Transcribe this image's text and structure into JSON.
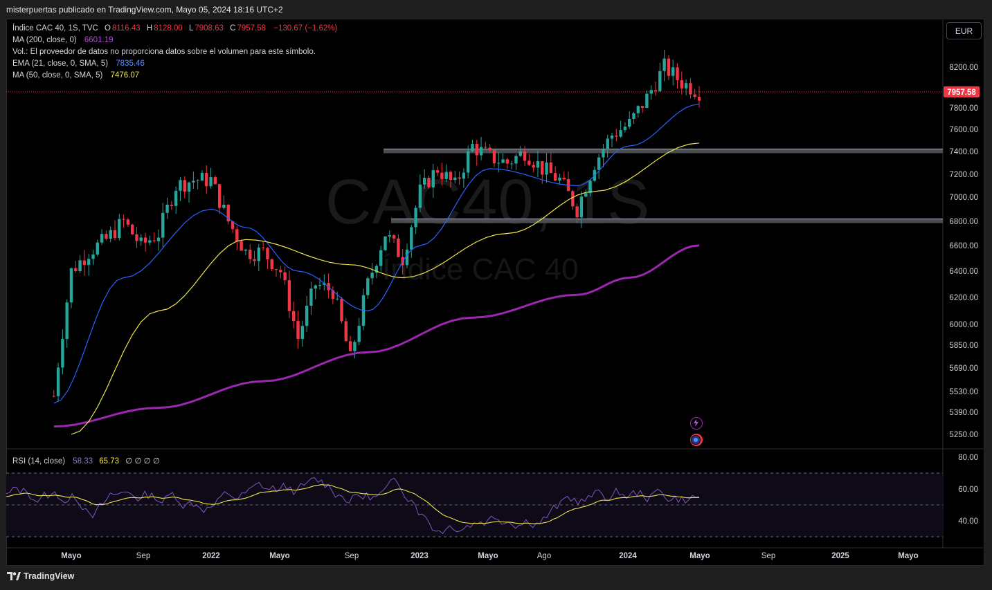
{
  "header": {
    "publisher_line": "misterpuertas publicado en TradingView.com, Mayo 05, 2024 18:16 UTC+2"
  },
  "legend": {
    "symbol": "Índice CAC 40, 1S, TVC",
    "o_label": "O",
    "o_value": "8116.43",
    "h_label": "H",
    "h_value": "8128.00",
    "l_label": "L",
    "l_value": "7908.63",
    "c_label": "C",
    "c_value": "7957.58",
    "change": "−130.67 (−1.62%)",
    "ma200_label": "MA (200, close, 0)",
    "ma200_value": "6601.19",
    "vol_note": "Vol.: El proveedor de datos no proporciona datos sobre el volumen para este símbolo.",
    "ema21_label": "EMA (21, close, 0, SMA, 5)",
    "ema21_value": "7835.46",
    "ma50_label": "MA (50, close, 0, SMA, 5)",
    "ma50_value": "7476.07",
    "rsi_label": "RSI (14, close)",
    "rsi_value": "58.33",
    "rsi_ma_value": "65.73",
    "rsi_extra": "∅ ∅ ∅ ∅"
  },
  "currency_button": "EUR",
  "watermark": {
    "ticker": "CAC40, 1S",
    "name": "Índice CAC 40"
  },
  "footer": {
    "brand": "TradingView"
  },
  "colors": {
    "up": "#26a69a",
    "down": "#f23645",
    "ma200": "#9c27b0",
    "ema21": "#2962ff",
    "ma50": "#f0e54a",
    "rsi": "#7e57c2",
    "rsi_ma": "#f0e54a",
    "support_zone": "#787b86"
  },
  "chart_data": [
    {
      "type": "candlestick",
      "interval": "1W",
      "symbol": "Índice CAC 40",
      "price_axis_ticks": [
        "8200.00",
        "7800.00",
        "7600.00",
        "7400.00",
        "7200.00",
        "7000.00",
        "6800.00",
        "6600.00",
        "6400.00",
        "6200.00",
        "6000.00",
        "5850.00",
        "5690.00",
        "5530.00",
        "5390.00",
        "5250.00"
      ],
      "time_axis_ticks": [
        "Mayo",
        "Sep",
        "2022",
        "Mayo",
        "Sep",
        "2023",
        "Mayo",
        "Ago",
        "2024",
        "Mayo",
        "Sep",
        "2025",
        "Mayo"
      ],
      "last_price_label": "7957.58",
      "horizontal_zones": [
        7400,
        6800
      ],
      "close_series_approx": [
        {
          "x": "2021-04",
          "y": 5500
        },
        {
          "x": "2021-05",
          "y": 6400
        },
        {
          "x": "2021-06",
          "y": 6550
        },
        {
          "x": "2021-07",
          "y": 6650
        },
        {
          "x": "2021-08",
          "y": 6800
        },
        {
          "x": "2021-09",
          "y": 6600
        },
        {
          "x": "2021-10",
          "y": 6700
        },
        {
          "x": "2021-11",
          "y": 7100
        },
        {
          "x": "2021-12",
          "y": 7150
        },
        {
          "x": "2022-01",
          "y": 7150
        },
        {
          "x": "2022-02",
          "y": 6800
        },
        {
          "x": "2022-03",
          "y": 6550
        },
        {
          "x": "2022-04",
          "y": 6550
        },
        {
          "x": "2022-05",
          "y": 6400
        },
        {
          "x": "2022-06",
          "y": 5900
        },
        {
          "x": "2022-07",
          "y": 6300
        },
        {
          "x": "2022-08",
          "y": 6250
        },
        {
          "x": "2022-09",
          "y": 5750
        },
        {
          "x": "2022-10",
          "y": 6300
        },
        {
          "x": "2022-11",
          "y": 6700
        },
        {
          "x": "2022-12",
          "y": 6500
        },
        {
          "x": "2023-01",
          "y": 7050
        },
        {
          "x": "2023-02",
          "y": 7250
        },
        {
          "x": "2023-03",
          "y": 7100
        },
        {
          "x": "2023-04",
          "y": 7450
        },
        {
          "x": "2023-05",
          "y": 7350
        },
        {
          "x": "2023-06",
          "y": 7300
        },
        {
          "x": "2023-07",
          "y": 7400
        },
        {
          "x": "2023-08",
          "y": 7250
        },
        {
          "x": "2023-09",
          "y": 7150
        },
        {
          "x": "2023-10",
          "y": 6900
        },
        {
          "x": "2023-11",
          "y": 7300
        },
        {
          "x": "2023-12",
          "y": 7550
        },
        {
          "x": "2024-01",
          "y": 7650
        },
        {
          "x": "2024-02",
          "y": 7900
        },
        {
          "x": "2024-03",
          "y": 8200
        },
        {
          "x": "2024-04",
          "y": 8050
        },
        {
          "x": "2024-05",
          "y": 7957.58
        }
      ],
      "ma200_approx": [
        {
          "x": "2021-04",
          "y": 5300
        },
        {
          "x": "2021-10",
          "y": 5420
        },
        {
          "x": "2022-04",
          "y": 5600
        },
        {
          "x": "2022-10",
          "y": 5800
        },
        {
          "x": "2023-04",
          "y": 6050
        },
        {
          "x": "2023-10",
          "y": 6220
        },
        {
          "x": "2024-01",
          "y": 6350
        },
        {
          "x": "2024-05",
          "y": 6601.19
        }
      ],
      "ema21_approx": [
        {
          "x": "2021-04",
          "y": 5450
        },
        {
          "x": "2021-08",
          "y": 6350
        },
        {
          "x": "2022-01",
          "y": 6900
        },
        {
          "x": "2022-03",
          "y": 6750
        },
        {
          "x": "2022-06",
          "y": 6400
        },
        {
          "x": "2022-10",
          "y": 6100
        },
        {
          "x": "2023-01",
          "y": 6600
        },
        {
          "x": "2023-05",
          "y": 7250
        },
        {
          "x": "2023-10",
          "y": 7100
        },
        {
          "x": "2024-01",
          "y": 7450
        },
        {
          "x": "2024-05",
          "y": 7835.46
        }
      ],
      "ma50_approx": [
        {
          "x": "2021-05",
          "y": 5250
        },
        {
          "x": "2021-10",
          "y": 6100
        },
        {
          "x": "2022-03",
          "y": 6650
        },
        {
          "x": "2022-09",
          "y": 6450
        },
        {
          "x": "2022-12",
          "y": 6350
        },
        {
          "x": "2023-06",
          "y": 6700
        },
        {
          "x": "2023-11",
          "y": 7050
        },
        {
          "x": "2024-05",
          "y": 7476.07
        }
      ]
    },
    {
      "type": "line",
      "name": "RSI (14, close)",
      "y_ticks": [
        "80.00",
        "60.00",
        "40.00"
      ],
      "bands": [
        70,
        50,
        30
      ],
      "last_value": 58.33,
      "ma_last_value": 65.73
    }
  ]
}
